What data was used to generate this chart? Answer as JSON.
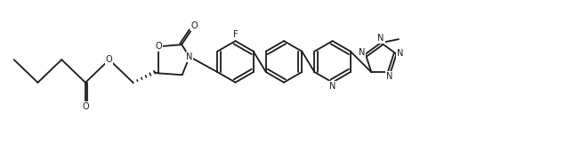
{
  "background": "#ffffff",
  "line_color": "#1a1a1a",
  "line_width": 1.3,
  "figsize": [
    6.54,
    1.62
  ],
  "dpi": 100,
  "font_size": 7.0,
  "xlim": [
    0,
    6.54
  ],
  "ylim": [
    0,
    1.62
  ]
}
